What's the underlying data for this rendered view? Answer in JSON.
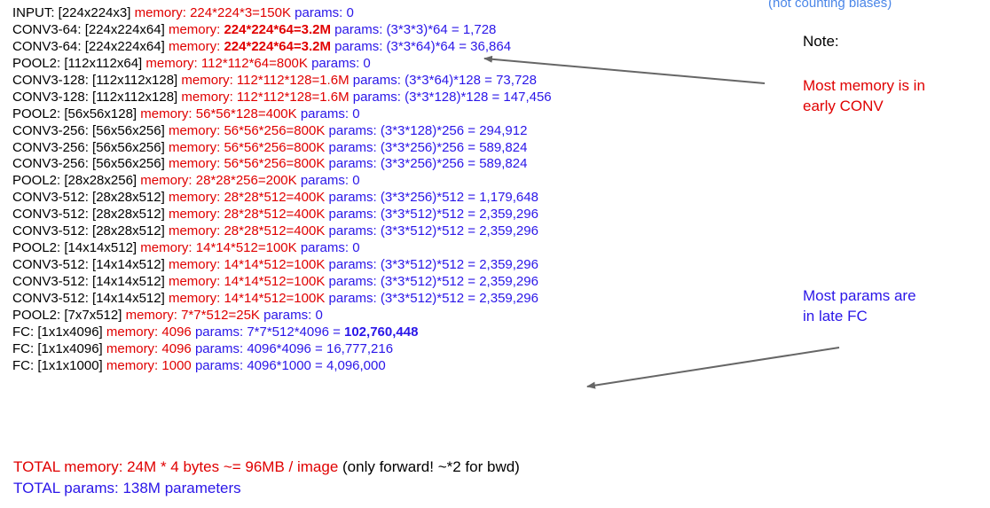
{
  "caption": "(not counting biases)",
  "layers": [
    {
      "layer": "INPUT: [224x224x3]",
      "mem": "224*224*3=150K",
      "params": "0",
      "mem_bold": false,
      "params_bold": false
    },
    {
      "layer": "CONV3-64: [224x224x64]",
      "mem": "224*224*64=3.2M",
      "params": "(3*3*3)*64 = 1,728",
      "mem_bold": true,
      "params_bold": false
    },
    {
      "layer": "CONV3-64: [224x224x64]",
      "mem": "224*224*64=3.2M",
      "params": "(3*3*64)*64 = 36,864",
      "mem_bold": true,
      "params_bold": false
    },
    {
      "layer": "POOL2: [112x112x64]",
      "mem": "112*112*64=800K",
      "params": "0",
      "mem_bold": false,
      "params_bold": false
    },
    {
      "layer": "CONV3-128: [112x112x128]",
      "mem": "112*112*128=1.6M",
      "params": "(3*3*64)*128 = 73,728",
      "mem_bold": false,
      "params_bold": false
    },
    {
      "layer": "CONV3-128: [112x112x128]",
      "mem": "112*112*128=1.6M",
      "params": "(3*3*128)*128 = 147,456",
      "mem_bold": false,
      "params_bold": false
    },
    {
      "layer": "POOL2: [56x56x128]",
      "mem": "56*56*128=400K",
      "params": "0",
      "mem_bold": false,
      "params_bold": false
    },
    {
      "layer": "CONV3-256: [56x56x256]",
      "mem": "56*56*256=800K",
      "params": "(3*3*128)*256 = 294,912",
      "mem_bold": false,
      "params_bold": false
    },
    {
      "layer": "CONV3-256: [56x56x256]",
      "mem": "56*56*256=800K",
      "params": "(3*3*256)*256 = 589,824",
      "mem_bold": false,
      "params_bold": false
    },
    {
      "layer": "CONV3-256: [56x56x256]",
      "mem": "56*56*256=800K",
      "params": "(3*3*256)*256 = 589,824",
      "mem_bold": false,
      "params_bold": false
    },
    {
      "layer": "POOL2: [28x28x256]",
      "mem": "28*28*256=200K",
      "params": "0",
      "mem_bold": false,
      "params_bold": false
    },
    {
      "layer": "CONV3-512: [28x28x512]",
      "mem": "28*28*512=400K",
      "params": "(3*3*256)*512 = 1,179,648",
      "mem_bold": false,
      "params_bold": false
    },
    {
      "layer": "CONV3-512: [28x28x512]",
      "mem": "28*28*512=400K",
      "params": "(3*3*512)*512 = 2,359,296",
      "mem_bold": false,
      "params_bold": false
    },
    {
      "layer": "CONV3-512: [28x28x512]",
      "mem": "28*28*512=400K",
      "params": "(3*3*512)*512 = 2,359,296",
      "mem_bold": false,
      "params_bold": false
    },
    {
      "layer": "POOL2: [14x14x512]",
      "mem": "14*14*512=100K",
      "params": "0",
      "mem_bold": false,
      "params_bold": false
    },
    {
      "layer": "CONV3-512: [14x14x512]",
      "mem": "14*14*512=100K",
      "params": "(3*3*512)*512 = 2,359,296",
      "mem_bold": false,
      "params_bold": false
    },
    {
      "layer": "CONV3-512: [14x14x512]",
      "mem": "14*14*512=100K",
      "params": "(3*3*512)*512 = 2,359,296",
      "mem_bold": false,
      "params_bold": false
    },
    {
      "layer": "CONV3-512: [14x14x512]",
      "mem": "14*14*512=100K",
      "params": "(3*3*512)*512 = 2,359,296",
      "mem_bold": false,
      "params_bold": false
    },
    {
      "layer": "POOL2: [7x7x512]",
      "mem": "7*7*512=25K",
      "params": "0",
      "mem_bold": false,
      "params_bold": false
    },
    {
      "layer": "FC: [1x1x4096]",
      "mem": "4096",
      "params": "7*7*512*4096 = ",
      "params_bold_tail": "102,760,448",
      "mem_bold": false,
      "params_bold": false
    },
    {
      "layer": "FC: [1x1x4096]",
      "mem": "4096",
      "params": "4096*4096 = 16,777,216",
      "mem_bold": false,
      "params_bold": false
    },
    {
      "layer": "FC: [1x1x1000]",
      "mem": "1000",
      "params": "4096*1000 = 4,096,000",
      "mem_bold": false,
      "params_bold": false
    }
  ],
  "labels": {
    "memory": "memory:",
    "params": "params:"
  },
  "notes": {
    "heading": "Note:",
    "memory_line1": "Most memory is in",
    "memory_line2": "early CONV",
    "params_line1": "Most params are",
    "params_line2": "in late FC"
  },
  "totals": {
    "memory": "TOTAL memory: 24M * 4 bytes ~= 96MB / image",
    "memory_note": " (only forward! ~*2 for bwd)",
    "params": "TOTAL params: 138M parameters"
  },
  "colors": {
    "memory": "#e00000",
    "params": "#2a16e8",
    "caption": "#4a86e8",
    "arrow": "#666666"
  }
}
